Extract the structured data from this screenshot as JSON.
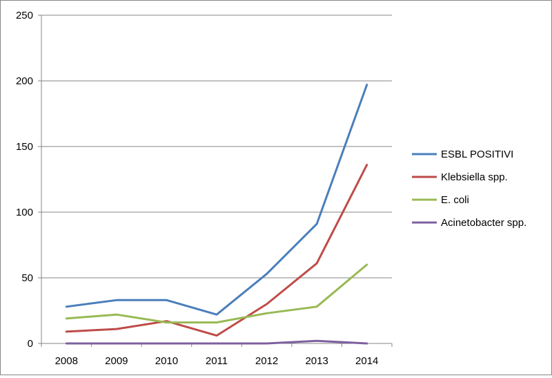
{
  "chart_data": {
    "type": "line",
    "title": "",
    "xlabel": "",
    "ylabel": "",
    "categories": [
      "2008",
      "2009",
      "2010",
      "2011",
      "2012",
      "2013",
      "2014"
    ],
    "ylim": [
      0,
      250
    ],
    "yticks": [
      0,
      50,
      100,
      150,
      200,
      250
    ],
    "y_tick_labels": [
      "0",
      "50",
      "100",
      "150",
      "200",
      "250"
    ],
    "grid": true,
    "legend_position": "right",
    "series": [
      {
        "name": "ESBL POSITIVI",
        "color": "#4a7ebb",
        "values": [
          28,
          33,
          33,
          22,
          53,
          91,
          197
        ]
      },
      {
        "name": "Klebsiella spp.",
        "color": "#be4b48",
        "values": [
          9,
          11,
          17,
          6,
          30,
          61,
          136
        ]
      },
      {
        "name": "E. coli",
        "color": "#98b954",
        "values": [
          19,
          22,
          16,
          16,
          23,
          28,
          60
        ]
      },
      {
        "name": "Acinetobacter spp.",
        "color": "#7d60a0",
        "values": [
          0,
          0,
          0,
          0,
          0,
          2,
          0
        ]
      }
    ]
  }
}
